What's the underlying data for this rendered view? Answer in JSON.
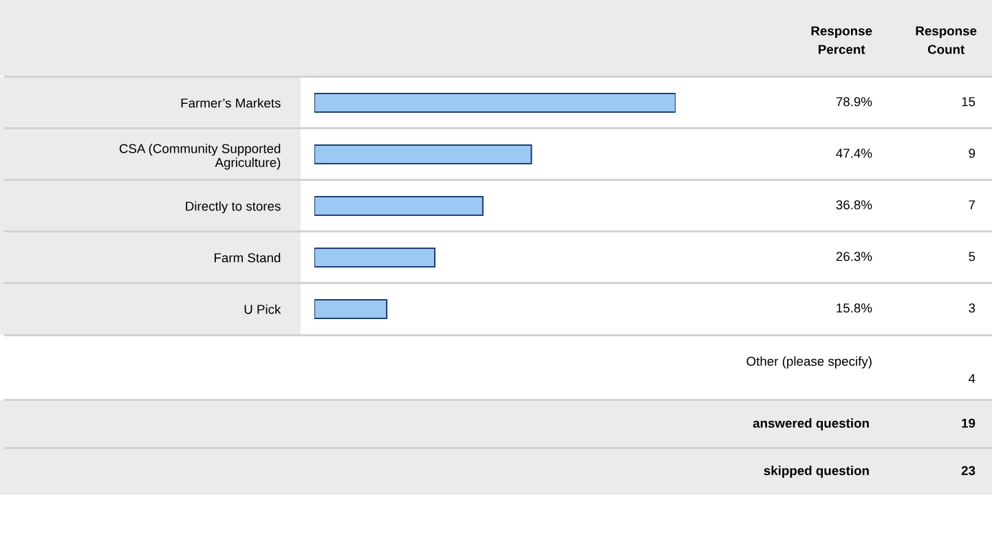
{
  "chart_data": {
    "type": "bar",
    "orientation": "horizontal",
    "categories": [
      "Farmer’s Markets",
      "CSA (Community Supported\nAgriculture)",
      "Directly to stores",
      "Farm Stand",
      "U Pick"
    ],
    "values": [
      78.9,
      47.4,
      36.8,
      26.3,
      15.8
    ],
    "value_labels": [
      "78.9%",
      "47.4%",
      "36.8%",
      "26.3%",
      "15.8%"
    ],
    "color": "#9cc9f4",
    "grid": false,
    "legend": false,
    "annotations": [
      "Response\nPercent",
      "Response\nCount",
      "15",
      "9",
      "7",
      "5",
      "3",
      "Other (please specify)",
      "4",
      "answered question",
      "19",
      "skipped question",
      "23"
    ]
  }
}
